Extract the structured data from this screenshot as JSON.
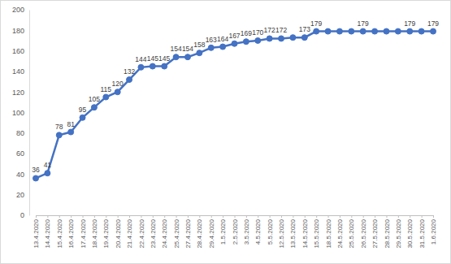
{
  "chart_data": {
    "type": "line",
    "categories": [
      "13.4.2020",
      "14.4.2020",
      "15.4.2020",
      "16.4.2020",
      "17.4.2020",
      "18.4.2020",
      "19.4.2020",
      "20.4.2020",
      "21.4.2020",
      "22.4.2020",
      "23.4.2020",
      "24.4.2020",
      "25.4.2020",
      "27.4.2020",
      "28.4.2020",
      "29.4.2020",
      "1.5.2020",
      "2.5.2020",
      "3.5.2020",
      "4.5.2020",
      "5.5.2020",
      "12.5.2020",
      "13.5.2020",
      "14.5.2020",
      "15.5.2020",
      "18.5.2020",
      "24.5.2020",
      "25.5.2020",
      "26.5.2020",
      "27.5.2020",
      "28.5.2020",
      "29.5.2020",
      "30.5.2020",
      "31.5.2020",
      "1.6.2020"
    ],
    "values": [
      36,
      41,
      78,
      81,
      95,
      105,
      115,
      120,
      132,
      144,
      145,
      145,
      154,
      154,
      158,
      163,
      164,
      167,
      169,
      170,
      172,
      172,
      173,
      173,
      179,
      179,
      179,
      179,
      179,
      179,
      179,
      179,
      179,
      179,
      179
    ],
    "value_labels": [
      "36",
      "41",
      "78",
      "81",
      "95",
      "105",
      "115",
      "120",
      "132",
      "144",
      "145",
      "145",
      "154",
      "154",
      "158",
      "163",
      "164",
      "167",
      "169",
      "170",
      "172",
      "172",
      null,
      "173",
      "179",
      null,
      null,
      null,
      "179",
      null,
      null,
      null,
      "179",
      null,
      "179"
    ],
    "color": "#4472c4",
    "marker": "circle",
    "line_style": "solid",
    "ylim": [
      0,
      200
    ],
    "yticks": [
      0,
      20,
      40,
      60,
      80,
      100,
      120,
      140,
      160,
      180,
      200
    ],
    "grid": false,
    "data_labels": true
  }
}
